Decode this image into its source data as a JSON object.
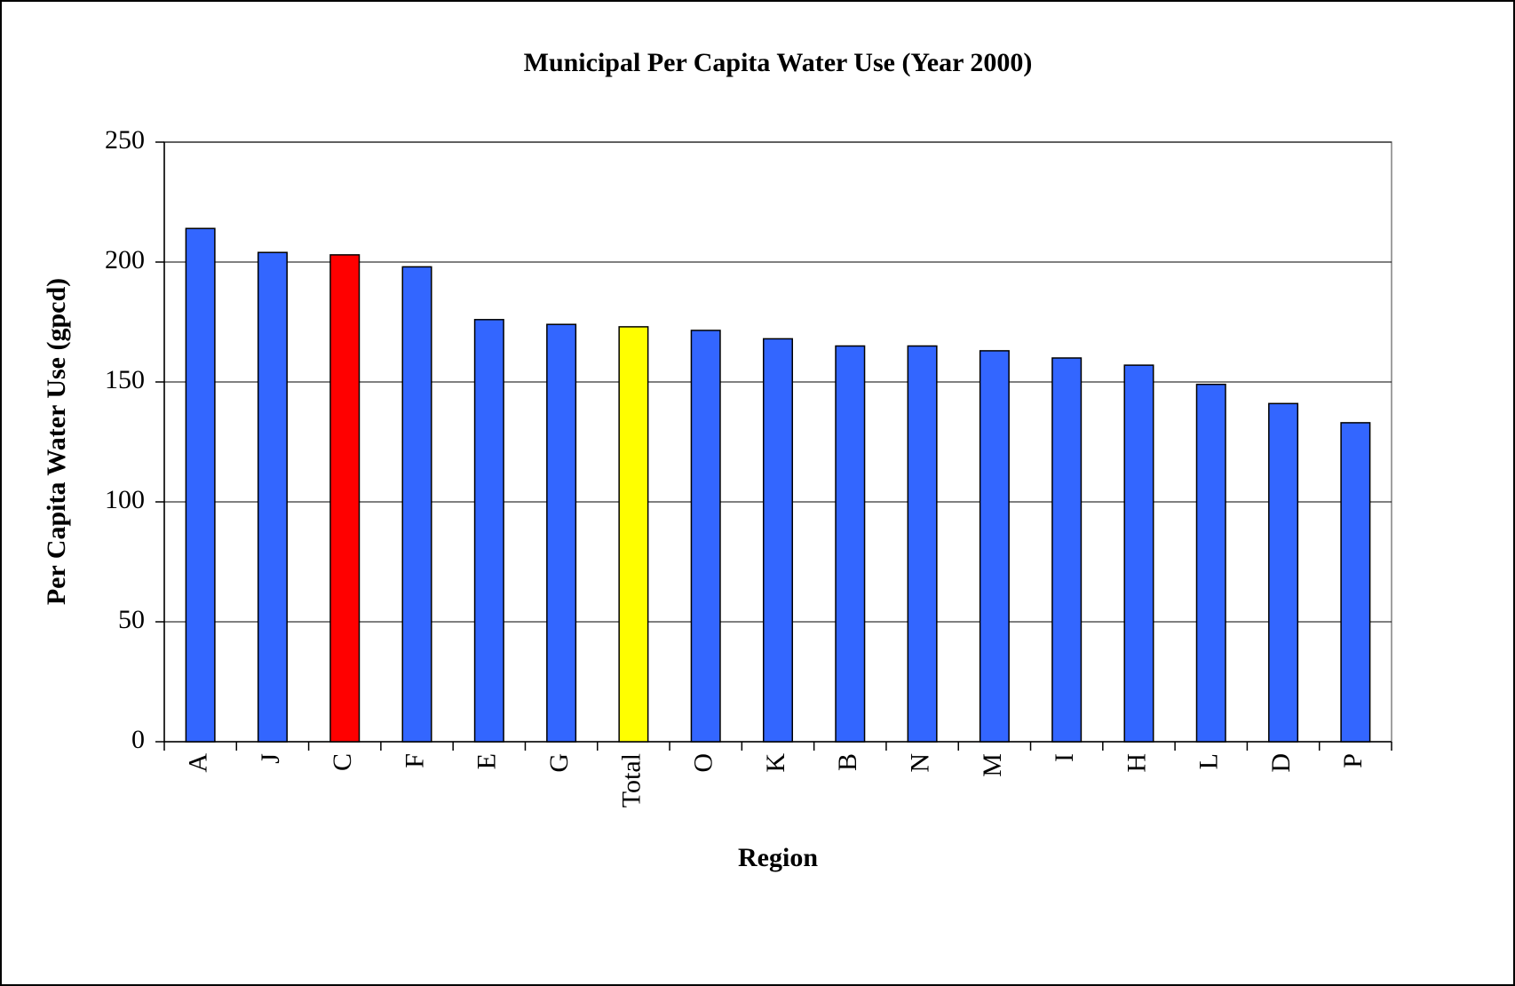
{
  "chart_data": {
    "type": "bar",
    "title": "Municipal Per Capita Water Use (Year 2000)",
    "x_label": "Region",
    "y_label": "Per Capita Water Use (gpcd)",
    "categories": [
      "A",
      "J",
      "C",
      "F",
      "E",
      "G",
      "Total",
      "O",
      "K",
      "B",
      "N",
      "M",
      "I",
      "H",
      "L",
      "D",
      "P"
    ],
    "values": [
      214,
      204,
      203,
      198,
      176,
      174,
      173,
      171.5,
      168,
      165,
      165,
      163,
      160,
      157,
      149,
      141,
      133
    ],
    "colors": [
      "#3366ff",
      "#3366ff",
      "#ff0000",
      "#3366ff",
      "#3366ff",
      "#3366ff",
      "#ffff00",
      "#3366ff",
      "#3366ff",
      "#3366ff",
      "#3366ff",
      "#3366ff",
      "#3366ff",
      "#3366ff",
      "#3366ff",
      "#3366ff",
      "#3366ff"
    ],
    "ylim": [
      0,
      250
    ],
    "yticks": [
      0,
      50,
      100,
      150,
      200,
      250
    ],
    "grid": true
  }
}
